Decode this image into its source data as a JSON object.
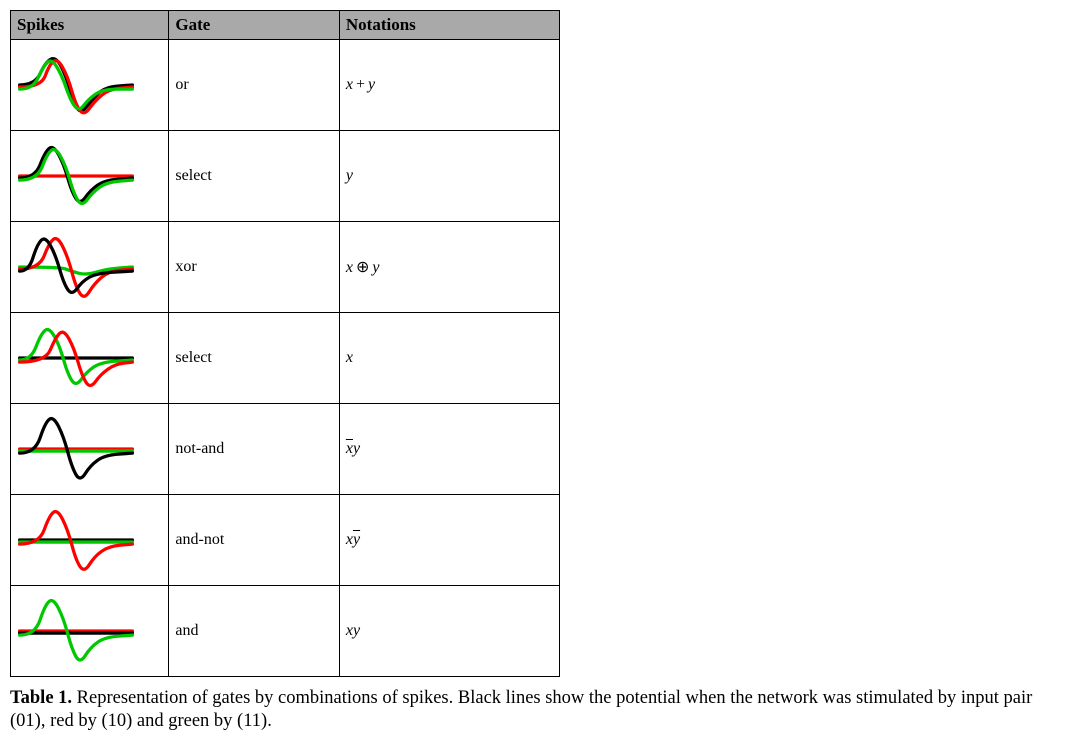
{
  "table": {
    "headers": [
      "Spikes",
      "Gate",
      "Notations"
    ],
    "header_bg": "#a9a9a9",
    "border_color": "#000000",
    "colors": {
      "black": "#000000",
      "red": "#ff0000",
      "green": "#00c800"
    },
    "stroke_width": 3.2,
    "spike_viewbox": {
      "w": 120,
      "h": 80,
      "mid": 40
    },
    "rows": [
      {
        "gate": "or",
        "notation_html": "<i>x</i><span class='op'>+</span><i>y</i>",
        "curves": {
          "black": [
            [
              5,
              40
            ],
            [
              20,
              40
            ],
            [
              30,
              18
            ],
            [
              40,
              12
            ],
            [
              50,
              30
            ],
            [
              58,
              58
            ],
            [
              65,
              68
            ],
            [
              75,
              55
            ],
            [
              88,
              42
            ],
            [
              115,
              40
            ]
          ],
          "red": [
            [
              5,
              42
            ],
            [
              26,
              42
            ],
            [
              34,
              20
            ],
            [
              42,
              14
            ],
            [
              52,
              32
            ],
            [
              60,
              60
            ],
            [
              68,
              70
            ],
            [
              78,
              56
            ],
            [
              92,
              44
            ],
            [
              115,
              42
            ]
          ],
          "green": [
            [
              5,
              44
            ],
            [
              18,
              44
            ],
            [
              28,
              22
            ],
            [
              36,
              14
            ],
            [
              46,
              30
            ],
            [
              55,
              56
            ],
            [
              63,
              66
            ],
            [
              72,
              54
            ],
            [
              86,
              44
            ],
            [
              115,
              44
            ]
          ]
        }
      },
      {
        "gate": "select",
        "notation_html": "<i>y</i>",
        "curves": {
          "red": [
            [
              5,
              40
            ],
            [
              115,
              40
            ]
          ],
          "black": [
            [
              5,
              42
            ],
            [
              20,
              42
            ],
            [
              30,
              16
            ],
            [
              38,
              10
            ],
            [
              48,
              28
            ],
            [
              56,
              56
            ],
            [
              64,
              68
            ],
            [
              74,
              54
            ],
            [
              88,
              44
            ],
            [
              115,
              42
            ]
          ],
          "green": [
            [
              5,
              44
            ],
            [
              22,
              44
            ],
            [
              32,
              18
            ],
            [
              40,
              12
            ],
            [
              50,
              30
            ],
            [
              58,
              58
            ],
            [
              66,
              70
            ],
            [
              76,
              56
            ],
            [
              90,
              46
            ],
            [
              115,
              44
            ]
          ]
        }
      },
      {
        "gate": "xor",
        "notation_html": "<i>x</i><span class='op'>&oplus;</span><i>y</i>",
        "curves": {
          "green": [
            [
              5,
              40
            ],
            [
              45,
              40
            ],
            [
              55,
              44
            ],
            [
              70,
              48
            ],
            [
              90,
              42
            ],
            [
              115,
              40
            ]
          ],
          "red": [
            [
              5,
              42
            ],
            [
              24,
              42
            ],
            [
              34,
              16
            ],
            [
              42,
              10
            ],
            [
              52,
              30
            ],
            [
              60,
              60
            ],
            [
              68,
              72
            ],
            [
              78,
              56
            ],
            [
              92,
              44
            ],
            [
              115,
              42
            ]
          ],
          "black": [
            [
              5,
              44
            ],
            [
              14,
              44
            ],
            [
              22,
              18
            ],
            [
              30,
              10
            ],
            [
              40,
              28
            ],
            [
              48,
              56
            ],
            [
              56,
              68
            ],
            [
              66,
              54
            ],
            [
              80,
              46
            ],
            [
              115,
              44
            ]
          ]
        }
      },
      {
        "gate": "select",
        "notation_html": "<i>x</i>",
        "curves": {
          "black": [
            [
              5,
              40
            ],
            [
              115,
              40
            ]
          ],
          "green": [
            [
              5,
              42
            ],
            [
              16,
              42
            ],
            [
              26,
              16
            ],
            [
              34,
              10
            ],
            [
              44,
              28
            ],
            [
              52,
              56
            ],
            [
              60,
              68
            ],
            [
              70,
              54
            ],
            [
              84,
              44
            ],
            [
              115,
              42
            ]
          ],
          "red": [
            [
              5,
              44
            ],
            [
              30,
              44
            ],
            [
              40,
              20
            ],
            [
              48,
              12
            ],
            [
              58,
              30
            ],
            [
              66,
              58
            ],
            [
              74,
              70
            ],
            [
              84,
              56
            ],
            [
              98,
              46
            ],
            [
              115,
              44
            ]
          ]
        }
      },
      {
        "gate": "not-and",
        "notation_html": "<span class='overline'><i>x</i></span><i>y</i>",
        "curves": {
          "red": [
            [
              5,
              40
            ],
            [
              115,
              40
            ]
          ],
          "green": [
            [
              5,
              42
            ],
            [
              115,
              42
            ]
          ],
          "black": [
            [
              5,
              44
            ],
            [
              20,
              44
            ],
            [
              30,
              14
            ],
            [
              38,
              8
            ],
            [
              48,
              28
            ],
            [
              56,
              58
            ],
            [
              64,
              72
            ],
            [
              74,
              56
            ],
            [
              88,
              46
            ],
            [
              115,
              44
            ]
          ]
        }
      },
      {
        "gate": "and-not",
        "notation_html": "<i>x</i><span class='overline'><i>y</i></span>",
        "curves": {
          "black": [
            [
              5,
              40
            ],
            [
              115,
              40
            ]
          ],
          "green": [
            [
              5,
              42
            ],
            [
              115,
              42
            ]
          ],
          "red": [
            [
              5,
              44
            ],
            [
              24,
              44
            ],
            [
              34,
              16
            ],
            [
              42,
              10
            ],
            [
              52,
              30
            ],
            [
              60,
              60
            ],
            [
              68,
              72
            ],
            [
              78,
              56
            ],
            [
              92,
              46
            ],
            [
              115,
              44
            ]
          ]
        }
      },
      {
        "gate": "and",
        "notation_html": "<i>x</i><i>y</i>",
        "curves": {
          "red": [
            [
              5,
              40
            ],
            [
              115,
              40
            ]
          ],
          "black": [
            [
              5,
              42
            ],
            [
              115,
              42
            ]
          ],
          "green": [
            [
              5,
              44
            ],
            [
              20,
              44
            ],
            [
              30,
              14
            ],
            [
              38,
              8
            ],
            [
              48,
              28
            ],
            [
              56,
              58
            ],
            [
              64,
              72
            ],
            [
              74,
              56
            ],
            [
              88,
              46
            ],
            [
              115,
              44
            ]
          ]
        }
      }
    ]
  },
  "caption": {
    "label": "Table 1.",
    "text": "Representation of gates by combinations of spikes. Black lines show the potential when the network was stimulated by input pair (01), red by (10) and green by (11)."
  }
}
